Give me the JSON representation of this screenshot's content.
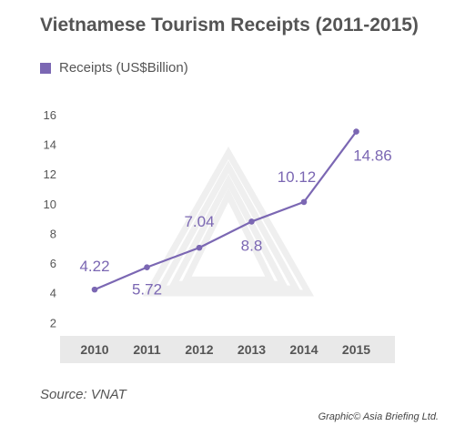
{
  "colors": {
    "series": "#7b67b3",
    "axis_band": "#e9e9e9",
    "watermark": "#efefef"
  },
  "source": "Source: VNAT",
  "credit": "Graphic© Asia Briefing Ltd.",
  "chart_data": {
    "type": "line",
    "title": "Vietnamese Tourism Receipts (2011-2015)",
    "xlabel": "",
    "ylabel": "",
    "categories": [
      "2010",
      "2011",
      "2012",
      "2013",
      "2014",
      "2015"
    ],
    "series": [
      {
        "name": "Receipts (US$Billion)",
        "values": [
          4.22,
          5.72,
          7.04,
          8.8,
          10.12,
          14.86
        ],
        "labels": [
          "4.22",
          "5.72",
          "7.04",
          "8.8",
          "10.12",
          "14.86"
        ]
      }
    ],
    "ylim": [
      1.1,
      16
    ],
    "yticks": [
      "2",
      "4",
      "6",
      "8",
      "10",
      "12",
      "14",
      "16"
    ],
    "grid": false,
    "legend": "top-left"
  }
}
